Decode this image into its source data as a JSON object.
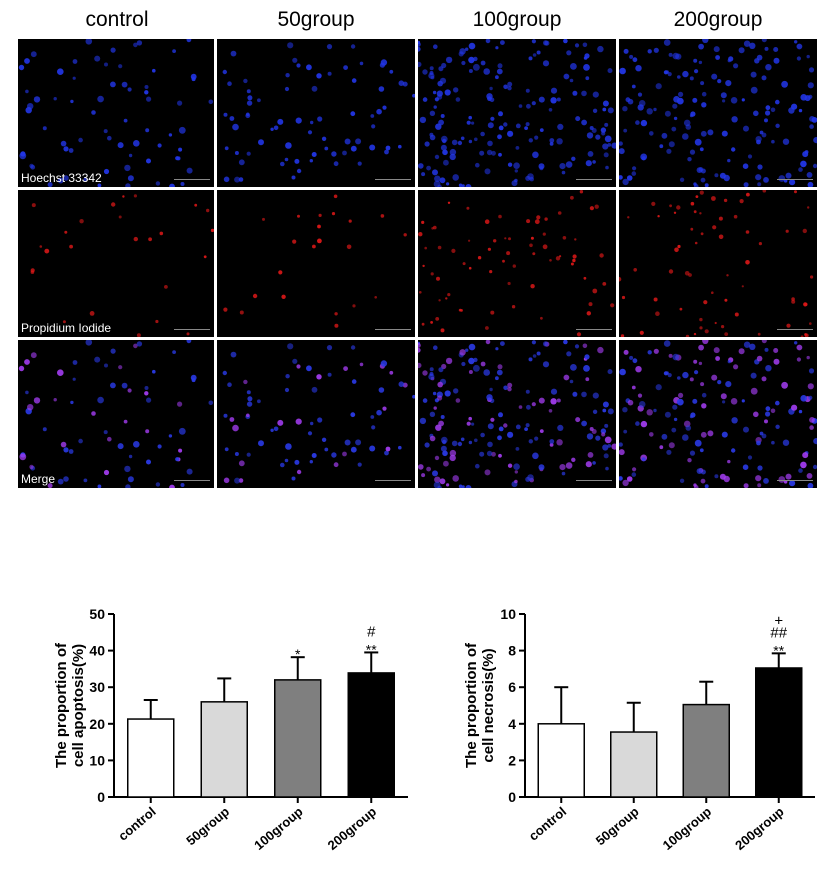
{
  "micrograph_panel": {
    "columns": [
      "control",
      "50group",
      "100group",
      "200group"
    ],
    "rows": [
      {
        "stain": "Hoechst 33342",
        "color": "#2a3cff"
      },
      {
        "stain": "Propidium Iodide",
        "color": "#ff2020"
      },
      {
        "stain": "Merge",
        "color": "#5a3cff"
      }
    ]
  },
  "chart_data": [
    {
      "type": "bar",
      "categories": [
        "control",
        "50group",
        "100group",
        "200group"
      ],
      "values": [
        21.3,
        26.0,
        32.0,
        33.9
      ],
      "errors": [
        5.2,
        6.4,
        6.2,
        5.6
      ],
      "significance": [
        "",
        "",
        "*",
        "**"
      ],
      "significance_hash": [
        "",
        "",
        "",
        "#"
      ],
      "significance_plus": [
        "",
        "",
        "",
        ""
      ],
      "bar_colors": [
        "#ffffff",
        "#d9d9d9",
        "#7f7f7f",
        "#000000"
      ],
      "xlabel": "",
      "ylabel": "The  proportion of\ncell apoptosis(%)",
      "ylim": [
        0,
        50
      ],
      "yticks": [
        0,
        10,
        20,
        30,
        40,
        50
      ],
      "grid": false
    },
    {
      "type": "bar",
      "categories": [
        "control",
        "50group",
        "100group",
        "200group"
      ],
      "values": [
        4.0,
        3.55,
        5.05,
        7.05
      ],
      "errors": [
        2.0,
        1.6,
        1.25,
        0.8
      ],
      "significance": [
        "",
        "",
        "",
        "**"
      ],
      "significance_hash": [
        "",
        "",
        "",
        "##"
      ],
      "significance_plus": [
        "",
        "",
        "",
        "+"
      ],
      "bar_colors": [
        "#ffffff",
        "#d9d9d9",
        "#7f7f7f",
        "#000000"
      ],
      "xlabel": "",
      "ylabel": "The proportion of\ncell necrosis(%)",
      "ylim": [
        0,
        10
      ],
      "yticks": [
        0,
        2,
        4,
        6,
        8,
        10
      ],
      "grid": false
    }
  ]
}
